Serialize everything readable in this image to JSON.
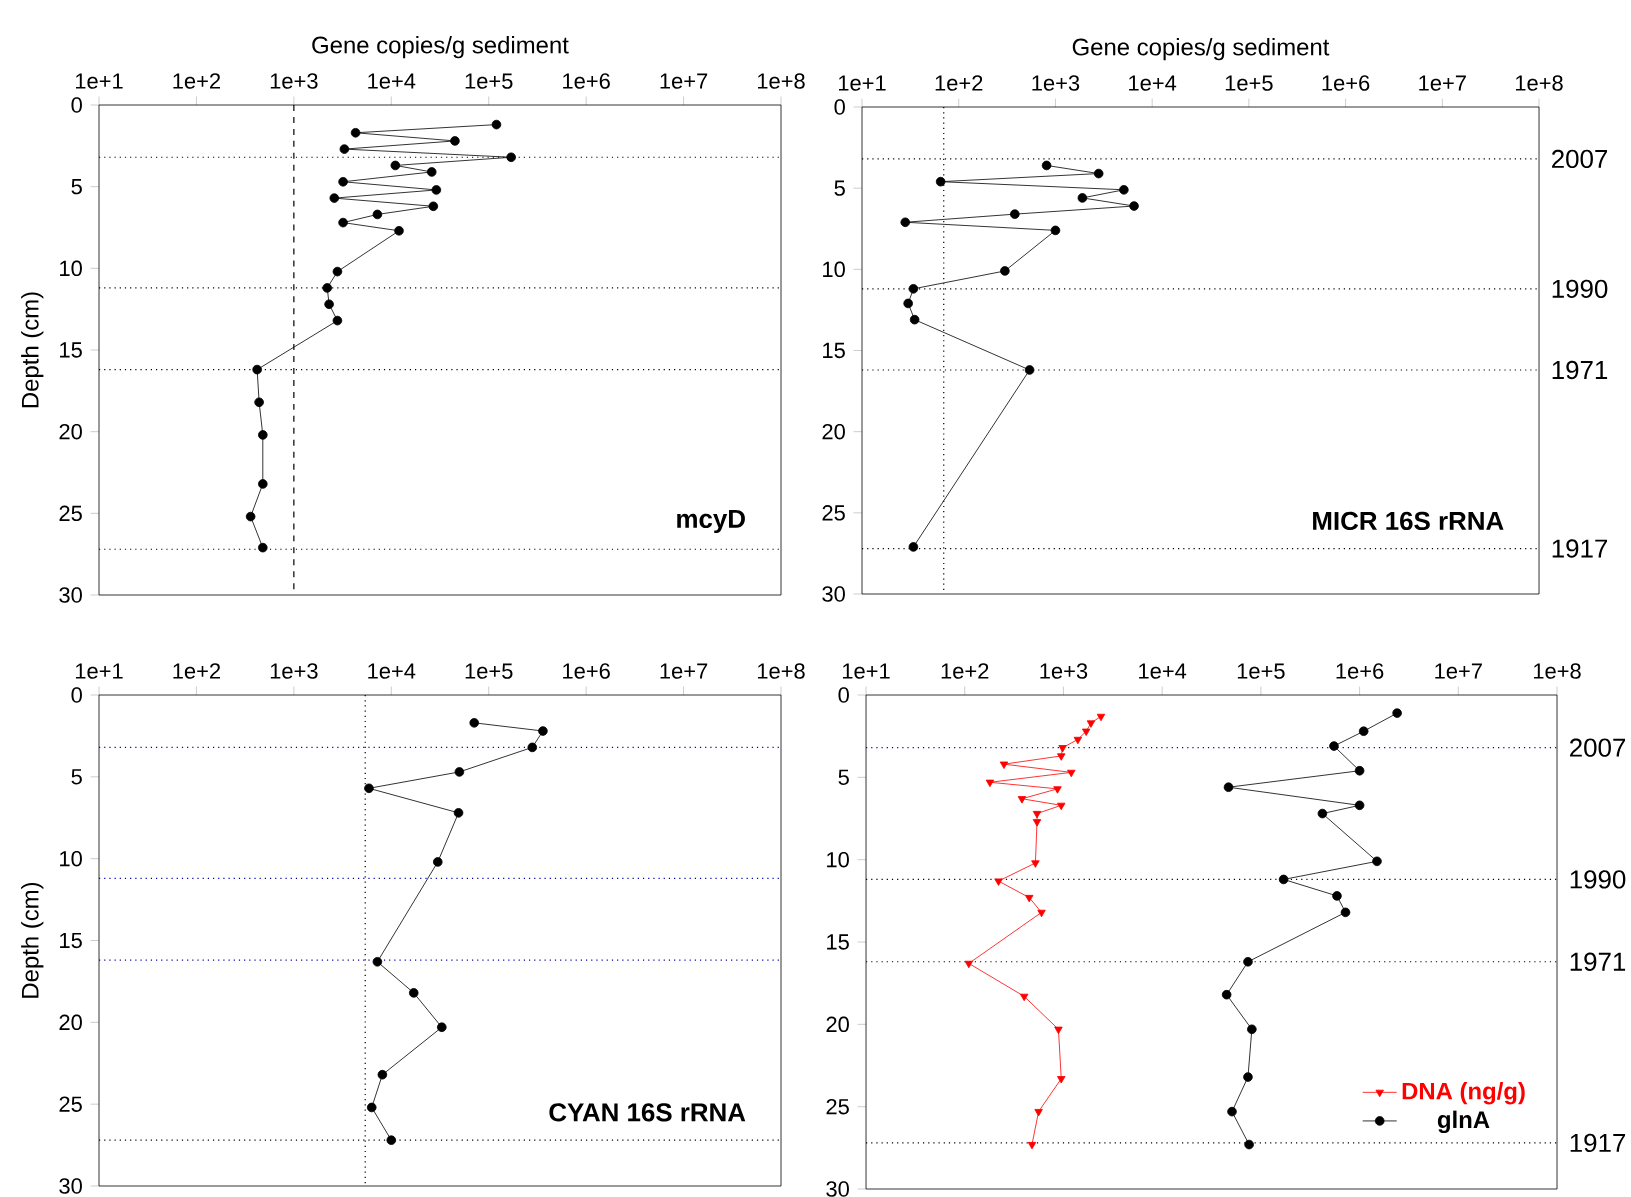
{
  "chart_data": [
    {
      "type": "line",
      "xlabel": "Gene copies/g sediment",
      "ylabel": "Depth (cm)",
      "log": "x",
      "marker": "circle",
      "xlim": [
        10,
        100000000
      ],
      "xticks": [
        {
          "value": 10,
          "label": "1e+1"
        },
        {
          "value": 100,
          "label": "1e+2"
        },
        {
          "value": 1000,
          "label": "1e+3"
        },
        {
          "value": 10000,
          "label": "1e+4"
        },
        {
          "value": 100000,
          "label": "1e+5"
        },
        {
          "value": 1000000,
          "label": "1e+6"
        },
        {
          "value": 10000000,
          "label": "1e+7"
        },
        {
          "value": 100000000,
          "label": "1e+8"
        }
      ],
      "ylim": [
        30,
        0
      ],
      "yticks": [
        0,
        5,
        10,
        15,
        20,
        25,
        30
      ],
      "series": [
        {
          "color": "#000000",
          "x": [
            120000,
            4300,
            45000,
            3300,
            170000,
            11000,
            26000,
            3200,
            29000,
            2600,
            27000,
            7200,
            3200,
            12000,
            2800,
            2200,
            2300,
            2800,
            420,
            440,
            480,
            480,
            360,
            480
          ],
          "values": [
            1.2,
            1.7,
            2.2,
            2.7,
            3.2,
            3.7,
            4.1,
            4.7,
            5.2,
            5.7,
            6.2,
            6.7,
            7.2,
            7.7,
            10.2,
            11.2,
            12.2,
            13.2,
            16.2,
            18.2,
            20.2,
            23.2,
            25.2,
            27.1
          ]
        }
      ],
      "ref_lines": [
        {
          "axis": "x",
          "value": 1000,
          "color": "#000000",
          "line_style": "dashed"
        },
        {
          "axis": "y",
          "value": 3.2,
          "color": "#000000",
          "line_style": "dotted"
        },
        {
          "axis": "y",
          "value": 11.2,
          "color": "#000000",
          "line_style": "dotted"
        },
        {
          "axis": "y",
          "value": 16.2,
          "color": "#000000",
          "line_style": "dotted"
        },
        {
          "axis": "y",
          "value": 27.2,
          "color": "#000000",
          "line_style": "dotted"
        }
      ],
      "annotations": [
        "mcyD"
      ]
    },
    {
      "type": "line",
      "xlabel": "Gene copies/g sediment",
      "log": "x",
      "marker": "circle",
      "xlim": [
        10,
        100000000
      ],
      "xticks": [
        {
          "value": 10,
          "label": "1e+1"
        },
        {
          "value": 100,
          "label": "1e+2"
        },
        {
          "value": 1000,
          "label": "1e+3"
        },
        {
          "value": 10000,
          "label": "1e+4"
        },
        {
          "value": 100000,
          "label": "1e+5"
        },
        {
          "value": 1000000,
          "label": "1e+6"
        },
        {
          "value": 10000000,
          "label": "1e+7"
        },
        {
          "value": 100000000,
          "label": "1e+8"
        }
      ],
      "ylim": [
        30,
        0
      ],
      "yticks": [
        0,
        5,
        10,
        15,
        20,
        25,
        30
      ],
      "series": [
        {
          "color": "#000000",
          "x": [
            810,
            2800,
            65,
            5100,
            1900,
            6500,
            380,
            28,
            1000,
            300,
            34,
            30,
            35,
            540,
            34
          ],
          "values": [
            3.6,
            4.1,
            4.6,
            5.1,
            5.6,
            6.1,
            6.6,
            7.1,
            7.6,
            10.1,
            11.2,
            12.1,
            13.1,
            16.2,
            27.1
          ]
        }
      ],
      "ref_lines": [
        {
          "axis": "x",
          "value": 70,
          "color": "#000000",
          "line_style": "dotted"
        },
        {
          "axis": "y",
          "value": 3.2,
          "color": "#000000",
          "line_style": "dotted"
        },
        {
          "axis": "y",
          "value": 11.2,
          "color": "#000000",
          "line_style": "dotted"
        },
        {
          "axis": "y",
          "value": 16.2,
          "color": "#000000",
          "line_style": "dotted"
        },
        {
          "axis": "y",
          "value": 27.2,
          "color": "#000000",
          "line_style": "dotted"
        }
      ],
      "annotations": [
        "2007",
        "1990",
        "1971",
        "1917",
        "MICR 16S rRNA"
      ]
    },
    {
      "type": "line",
      "ylabel": "Depth (cm)",
      "log": "x",
      "marker": "circle",
      "xlim": [
        10,
        100000000
      ],
      "xticks": [
        {
          "value": 10,
          "label": "1e+1"
        },
        {
          "value": 100,
          "label": "1e+2"
        },
        {
          "value": 1000,
          "label": "1e+3"
        },
        {
          "value": 10000,
          "label": "1e+4"
        },
        {
          "value": 100000,
          "label": "1e+5"
        },
        {
          "value": 1000000,
          "label": "1e+6"
        },
        {
          "value": 10000000,
          "label": "1e+7"
        },
        {
          "value": 100000000,
          "label": "1e+8"
        }
      ],
      "ylim": [
        30,
        0
      ],
      "yticks": [
        0,
        5,
        10,
        15,
        20,
        25,
        30
      ],
      "series": [
        {
          "color": "#000000",
          "x": [
            71000,
            360000,
            280000,
            50000,
            5900,
            49000,
            30000,
            7200,
            17000,
            33000,
            8100,
            6300,
            10000
          ],
          "values": [
            1.7,
            2.2,
            3.2,
            4.7,
            5.7,
            7.2,
            10.2,
            16.3,
            18.2,
            20.3,
            23.2,
            25.2,
            27.2
          ]
        }
      ],
      "ref_lines": [
        {
          "axis": "x",
          "value": 5400,
          "color": "#000000",
          "line_style": "dotted"
        },
        {
          "axis": "y",
          "value": 3.2,
          "color": "#0000aa",
          "line_style": "dotted"
        },
        {
          "axis": "y",
          "value": 11.2,
          "color": "#0000aa",
          "line_style": "dotted"
        },
        {
          "axis": "y",
          "value": 16.2,
          "color": "#0000aa",
          "line_style": "dotted"
        },
        {
          "axis": "y",
          "value": 27.2,
          "color": "#000000",
          "line_style": "dotted"
        }
      ],
      "annotations": [
        "CYAN 16S rRNA"
      ]
    },
    {
      "type": "line",
      "log": "x",
      "marker": "circle",
      "legend": "bottom right",
      "xlim": [
        10,
        100000000
      ],
      "xticks": [
        {
          "value": 10,
          "label": "1e+1"
        },
        {
          "value": 100,
          "label": "1e+2"
        },
        {
          "value": 1000,
          "label": "1e+3"
        },
        {
          "value": 10000,
          "label": "1e+4"
        },
        {
          "value": 100000,
          "label": "1e+5"
        },
        {
          "value": 1000000,
          "label": "1e+6"
        },
        {
          "value": 10000000,
          "label": "1e+7"
        },
        {
          "value": 100000000,
          "label": "1e+8"
        }
      ],
      "ylim": [
        30,
        0
      ],
      "yticks": [
        0,
        5,
        10,
        15,
        20,
        25,
        30
      ],
      "series": [
        {
          "name": "DNA (ng/g)",
          "color": "#ff0000",
          "marker": "triangle",
          "x": [
            2400,
            1900,
            1700,
            1400,
            980,
            950,
            250,
            1200,
            180,
            870,
            380,
            950,
            540,
            540,
            520,
            220,
            450,
            600,
            110,
            400,
            890,
            950,
            560,
            480
          ],
          "values": [
            1.3,
            1.7,
            2.2,
            2.7,
            3.2,
            3.7,
            4.2,
            4.7,
            5.3,
            5.7,
            6.3,
            6.7,
            7.2,
            7.7,
            10.2,
            11.3,
            12.3,
            13.2,
            16.3,
            18.3,
            20.3,
            23.3,
            25.3,
            27.3
          ]
        },
        {
          "name": "glnA",
          "color": "#000000",
          "x": [
            2400000,
            1100000,
            550000,
            1000000,
            47000,
            1000000,
            420000,
            1500000,
            170000,
            590000,
            720000,
            74000,
            45000,
            81000,
            74000,
            51000,
            76000
          ],
          "values": [
            1.1,
            2.2,
            3.1,
            4.6,
            5.6,
            6.7,
            7.2,
            10.1,
            11.2,
            12.2,
            13.2,
            16.2,
            18.2,
            20.3,
            23.2,
            25.3,
            27.3
          ]
        }
      ],
      "ref_lines": [
        {
          "axis": "y",
          "value": 3.2,
          "color": "#0000aa",
          "line_style": "dotted"
        },
        {
          "axis": "y",
          "value": 11.2,
          "color": "#000000",
          "line_style": "dotted"
        },
        {
          "axis": "y",
          "value": 16.2,
          "color": "#000000",
          "line_style": "dotted"
        },
        {
          "axis": "y",
          "value": 27.2,
          "color": "#000000",
          "line_style": "dotted"
        }
      ],
      "annotations": [
        "2007",
        "1990",
        "1971",
        "1917"
      ]
    }
  ]
}
